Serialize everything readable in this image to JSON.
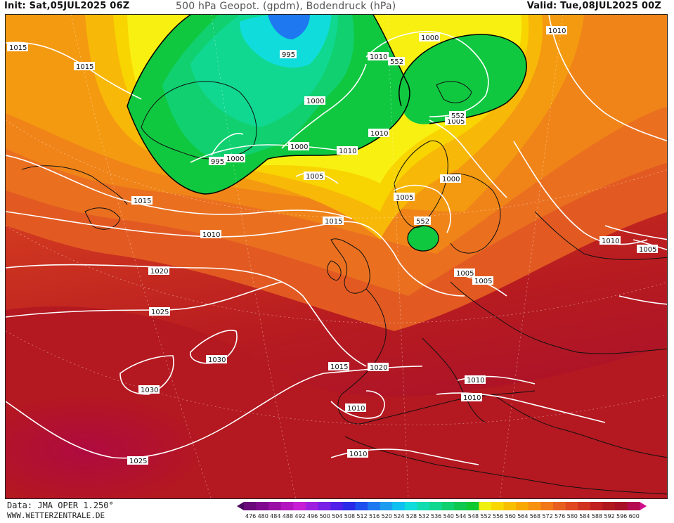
{
  "header": {
    "init": "Init: Sat,05JUL2025 06Z",
    "title": "500 hPa Geopot. (gpdm), Bodendruck (hPa)",
    "valid": "Valid: Tue,08JUL2025 00Z"
  },
  "footer": {
    "source": "Data: JMA OPER 1.250°",
    "website": "WWW.WETTERZENTRALE.DE"
  },
  "isobar_labels": [
    "1015",
    "1015",
    "995",
    "1010",
    "552",
    "1000",
    "1010",
    "1000",
    "1005",
    "552",
    "1010",
    "1000",
    "1000",
    "995",
    "1010",
    "1005",
    "1000",
    "1015",
    "1005",
    "1015",
    "552",
    "1010",
    "1020",
    "1010",
    "1005",
    "1005",
    "1005",
    "1025",
    "1030",
    "1015",
    "1020",
    "1010",
    "1030",
    "1010",
    "1010",
    "1010",
    "1025"
  ],
  "colorbar": {
    "ticks": [
      "476",
      "480",
      "484",
      "488",
      "492",
      "496",
      "500",
      "504",
      "508",
      "512",
      "516",
      "520",
      "524",
      "528",
      "532",
      "536",
      "540",
      "544",
      "548",
      "552",
      "556",
      "560",
      "564",
      "568",
      "572",
      "576",
      "580",
      "584",
      "588",
      "592",
      "596",
      "600"
    ],
    "colors": [
      "#6a0a7a",
      "#7f0a8f",
      "#9a10a6",
      "#b414c0",
      "#c81ed6",
      "#a020e0",
      "#7a20e6",
      "#5020e8",
      "#2a2ae8",
      "#1e50f0",
      "#1e78f0",
      "#1e9cf0",
      "#10c0f0",
      "#10dcdc",
      "#10dcb0",
      "#10d890",
      "#10d070",
      "#10c850",
      "#10c830",
      "#f0f010",
      "#f8d800",
      "#f8c000",
      "#f8a800",
      "#f89010",
      "#f07818",
      "#e86020",
      "#e04820",
      "#d03420",
      "#c02020",
      "#b01820",
      "#a81028",
      "#b40a50"
    ]
  }
}
